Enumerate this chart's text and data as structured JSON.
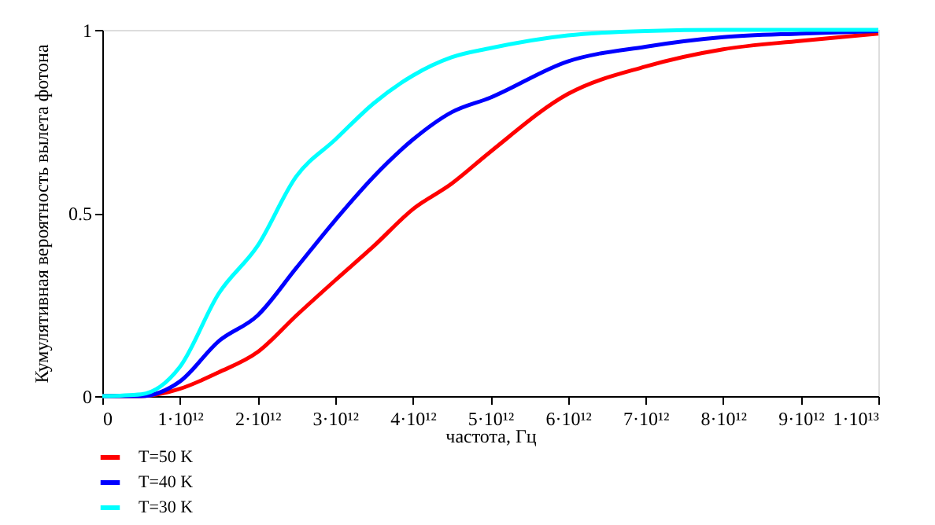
{
  "chart_data": {
    "type": "line",
    "xlabel": "частота, Гц",
    "ylabel": "Кумулятивная вероятность вылета фотона",
    "x": [
      0,
      500000000000.0,
      1000000000000.0,
      1500000000000.0,
      2000000000000.0,
      2500000000000.0,
      3000000000000.0,
      3500000000000.0,
      4000000000000.0,
      4500000000000.0,
      5000000000000.0,
      6000000000000.0,
      7000000000000.0,
      8000000000000.0,
      9000000000000.0,
      10000000000000.0
    ],
    "series": [
      {
        "name": "T=50 K",
        "color": "#ff0000",
        "values": [
          0,
          0,
          0.02,
          0.065,
          0.12,
          0.22,
          0.316,
          0.41,
          0.51,
          0.58,
          0.667,
          0.825,
          0.9,
          0.947,
          0.97,
          0.99
        ]
      },
      {
        "name": "T=40 K",
        "color": "#0000ff",
        "values": [
          0,
          0,
          0.04,
          0.15,
          0.22,
          0.35,
          0.48,
          0.6,
          0.7,
          0.775,
          0.815,
          0.914,
          0.954,
          0.98,
          0.99,
          0.997
        ]
      },
      {
        "name": "T=30 K",
        "color": "#00ffff",
        "values": [
          0,
          0.005,
          0.08,
          0.28,
          0.41,
          0.6,
          0.7,
          0.8,
          0.875,
          0.925,
          0.95,
          0.985,
          0.997,
          1,
          1,
          1
        ]
      }
    ],
    "xlim": [
      0,
      10000000000000.0
    ],
    "xticks": [
      0,
      {
        "value": 1000000000000.0,
        "label": "1·10¹²"
      },
      {
        "value": 2000000000000.0,
        "label": "2·10¹²"
      },
      {
        "value": 3000000000000.0,
        "label": "3·10¹²"
      },
      {
        "value": 4000000000000.0,
        "label": "4·10¹²"
      },
      {
        "value": 5000000000000.0,
        "label": "5·10¹²"
      },
      {
        "value": 6000000000000.0,
        "label": "6·10¹²"
      },
      {
        "value": 7000000000000.0,
        "label": "7·10¹²"
      },
      {
        "value": 8000000000000.0,
        "label": "8·10¹²"
      },
      {
        "value": 9000000000000.0,
        "label": "9·10¹²"
      },
      {
        "value": 10000000000000.0,
        "label": "1·10¹³"
      }
    ],
    "ylim": [
      0,
      1
    ],
    "yticks": [
      0,
      0.5,
      1
    ],
    "grid": false,
    "legend": "bottom left",
    "marker": "none",
    "line_style": "solid"
  }
}
